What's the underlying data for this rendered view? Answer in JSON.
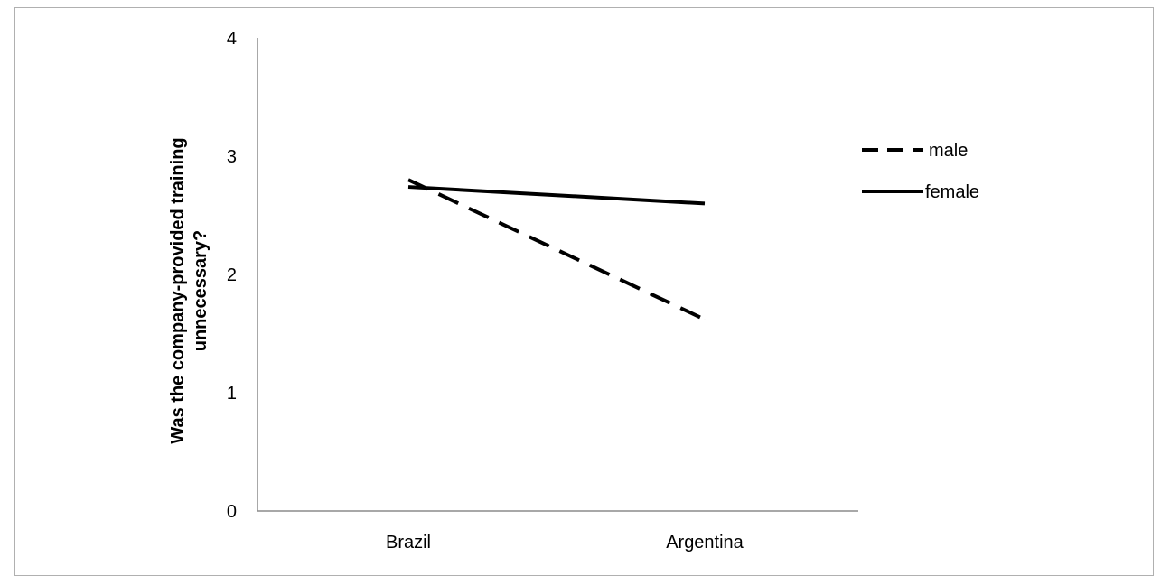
{
  "chart_data": {
    "type": "line",
    "categories": [
      "Brazil",
      "Argentina"
    ],
    "series": [
      {
        "name": "male",
        "values": [
          2.8,
          1.62
        ],
        "style": "dashed",
        "color": "#000000"
      },
      {
        "name": "female",
        "values": [
          2.74,
          2.6
        ],
        "style": "solid",
        "color": "#000000"
      }
    ],
    "ylabel": "Was the company-provided training unnecessary?",
    "ylabel_lines": [
      "Was the company-provided training",
      "unnecessary?"
    ],
    "xlabel": "",
    "ylim": [
      0,
      4
    ],
    "yticks": [
      0,
      1,
      2,
      3,
      4
    ],
    "grid": false,
    "legend_position": "right"
  }
}
